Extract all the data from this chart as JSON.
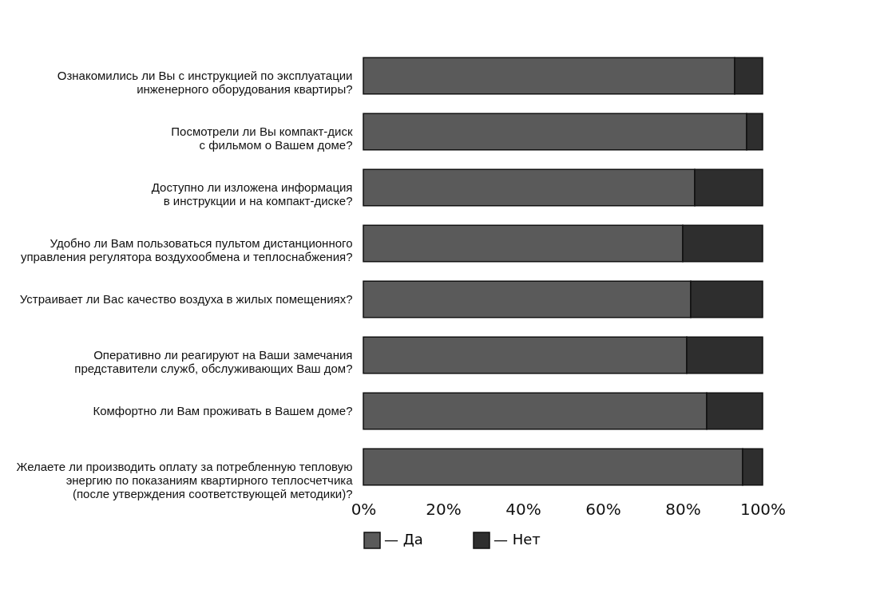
{
  "chart_data": {
    "type": "bar",
    "orientation": "horizontal",
    "stacked": true,
    "categories": [
      "Ознакомились ли Вы с инструкцией по эксплуатации\nинженерного оборудования квартиры?",
      "Посмотрели ли Вы компакт-диск\nс фильмом о Вашем доме?",
      "Доступно ли изложена информация\nв инструкции и на компакт-диске?",
      "Удобно ли Вам пользоваться пультом дистанционного\nуправления регулятора воздухообмена и теплоснабжения?",
      "Устраивает ли Вас качество воздуха в жилых помещениях?",
      "Оперативно ли реагируют на Ваши замечания\nпредставители служб, обслуживающих Ваш дом?",
      "Комфортно ли Вам проживать в Вашем доме?",
      "Желаете ли производить оплату за потребленную тепловую\nэнергию по показаниям квартирного теплосчетчика\n(после утверждения соответствующей методики)?"
    ],
    "series": [
      {
        "name": "— Да",
        "color": "#5a5a5a",
        "values": [
          93,
          96,
          83,
          80,
          82,
          81,
          86,
          95
        ]
      },
      {
        "name": "— Нет",
        "color": "#2e2e2e",
        "values": [
          7,
          4,
          17,
          20,
          18,
          19,
          14,
          5
        ]
      }
    ],
    "xlim": [
      0,
      100
    ],
    "xticks": [
      {
        "value": 0,
        "label": "0%"
      },
      {
        "value": 20,
        "label": "20%"
      },
      {
        "value": 40,
        "label": "40%"
      },
      {
        "value": 60,
        "label": "60%"
      },
      {
        "value": 80,
        "label": "80%"
      },
      {
        "value": 100,
        "label": "100%"
      }
    ],
    "legend": "bottom",
    "grid": false
  }
}
